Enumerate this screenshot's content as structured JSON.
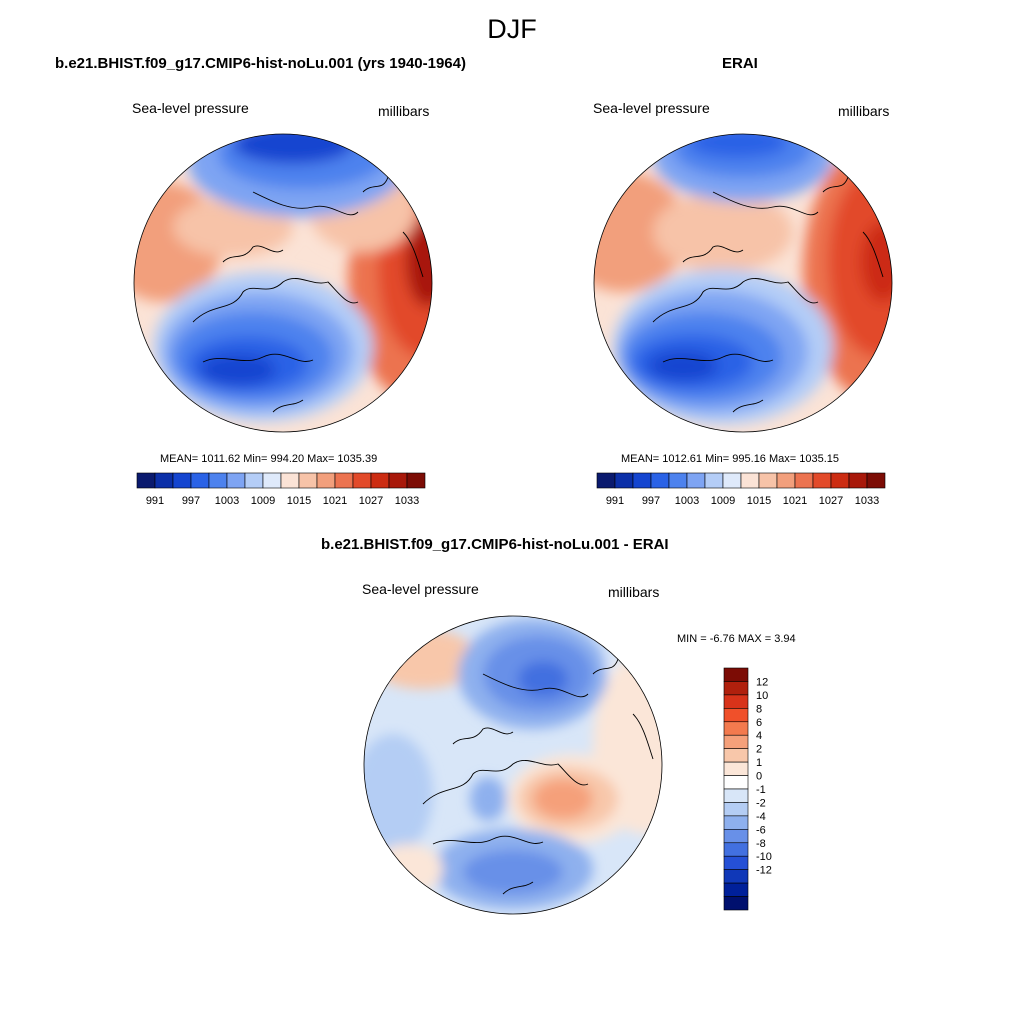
{
  "figure": {
    "title": "DJF"
  },
  "panels": [
    {
      "title": "b.e21.BHIST.f09_g17.CMIP6-hist-noLu.001 (yrs 1940-1964)",
      "left_label": "Sea-level pressure",
      "right_label": "millibars",
      "stats": "MEAN= 1011.62  Min= 994.20  Max= 1035.39"
    },
    {
      "title": "ERAI",
      "left_label": "Sea-level pressure",
      "right_label": "millibars",
      "stats": "MEAN= 1012.61  Min= 995.16  Max= 1035.15"
    },
    {
      "title": "b.e21.BHIST.f09_g17.CMIP6-hist-noLu.001 - ERAI",
      "left_label": "Sea-level pressure",
      "right_label": "millibars",
      "stats": "MIN =  -6.76 MAX =   3.94"
    }
  ],
  "colorbars": {
    "abs": {
      "colors": [
        "#0a1a6e",
        "#0b2fa8",
        "#1445d0",
        "#2a62e6",
        "#4d82ee",
        "#7ea4f3",
        "#b4cdf7",
        "#dfeafb",
        "#fbe3d6",
        "#f7c3a8",
        "#f29f7c",
        "#ec7350",
        "#e24a2a",
        "#cc2c12",
        "#a8180a",
        "#7c0c05"
      ],
      "labels": [
        "991",
        "997",
        "1003",
        "1009",
        "1015",
        "1021",
        "1027",
        "1033"
      ]
    },
    "diff": {
      "colors": [
        "#7c0c05",
        "#b0200d",
        "#d8331a",
        "#f0502a",
        "#f37a4e",
        "#f5a07a",
        "#f8c7aa",
        "#fbe6d8",
        "#ffffff",
        "#d8e6f8",
        "#b4cdf4",
        "#8eb0ee",
        "#6890e8",
        "#4270e0",
        "#2550d6",
        "#1038b8",
        "#00209a",
        "#00106e"
      ],
      "labels": [
        "12",
        "10",
        "8",
        "6",
        "4",
        "2",
        "1",
        "0",
        "-1",
        "-2",
        "-4",
        "-6",
        "-8",
        "-10",
        "-12"
      ]
    }
  }
}
